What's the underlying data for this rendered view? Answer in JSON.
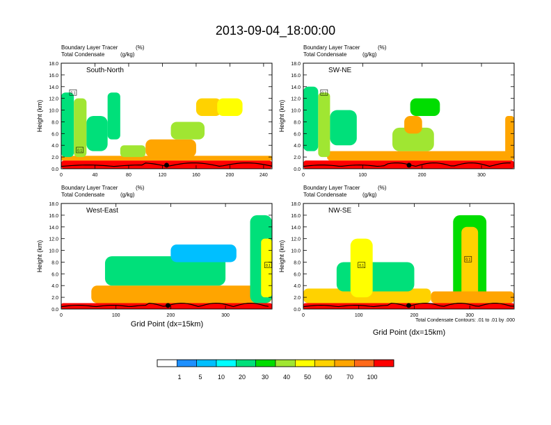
{
  "figure": {
    "title": "2013-09-04_18:00:00",
    "x_axis_title": "Grid Point (dx=15km)",
    "contour_note": "Total Condensate Contours: .01 to .01 by .000"
  },
  "chart_data": [
    {
      "type": "heatmap",
      "panel": "South-North",
      "subtitle_left": "Boundary Layer Tracer",
      "subtitle_right": "(%)",
      "subtitle2_left": "Total Condensate",
      "subtitle2_right": "(g/kg)",
      "ylabel": "Height (km)",
      "xlim": [
        0,
        250
      ],
      "ylim": [
        0,
        18
      ],
      "xticks": [
        0,
        40,
        80,
        120,
        160,
        200,
        240
      ],
      "yticks": [
        "0.0",
        "2.0",
        "4.0",
        "6.0",
        "8.0",
        "10.0",
        "12.0",
        "14.0",
        "16.0",
        "18.0"
      ],
      "marker_x": 125,
      "contour_labels": [
        {
          "text": "0.1",
          "x": 14,
          "y": 13
        },
        {
          "text": "0.1",
          "x": 22,
          "y": 3.2
        }
      ],
      "field": [
        {
          "x": [
            0,
            250
          ],
          "y": [
            0,
            1.4
          ],
          "level": 100
        },
        {
          "x": [
            0,
            250
          ],
          "y": [
            1.4,
            2.2
          ],
          "level": 70
        },
        {
          "x": [
            0,
            15
          ],
          "y": [
            2,
            13
          ],
          "level": 20
        },
        {
          "x": [
            15,
            30
          ],
          "y": [
            2,
            12
          ],
          "level": 40
        },
        {
          "x": [
            30,
            55
          ],
          "y": [
            3,
            9
          ],
          "level": 20
        },
        {
          "x": [
            55,
            70
          ],
          "y": [
            5,
            13
          ],
          "level": 20
        },
        {
          "x": [
            70,
            100
          ],
          "y": [
            2,
            4
          ],
          "level": 40
        },
        {
          "x": [
            100,
            160
          ],
          "y": [
            2,
            5
          ],
          "level": 70
        },
        {
          "x": [
            130,
            170
          ],
          "y": [
            5,
            8
          ],
          "level": 40
        },
        {
          "x": [
            160,
            190
          ],
          "y": [
            9,
            12
          ],
          "level": 60
        },
        {
          "x": [
            185,
            215
          ],
          "y": [
            9,
            12
          ],
          "level": 50
        }
      ]
    },
    {
      "type": "heatmap",
      "panel": "SW-NE",
      "subtitle_left": "Boundary Layer Tracer",
      "subtitle_right": "(%)",
      "subtitle2_left": "Total Condensate",
      "subtitle2_right": "(g/kg)",
      "ylabel": "Height (km)",
      "xlim": [
        0,
        355
      ],
      "ylim": [
        0,
        18
      ],
      "xticks": [
        0,
        100,
        200,
        300
      ],
      "yticks": [
        "0.0",
        "2.0",
        "4.0",
        "6.0",
        "8.0",
        "10.0",
        "12.0",
        "14.0",
        "16.0",
        "18.0"
      ],
      "marker_x": 178,
      "contour_labels": [
        {
          "text": "0.1",
          "x": 35,
          "y": 13
        }
      ],
      "field": [
        {
          "x": [
            0,
            355
          ],
          "y": [
            0,
            1.4
          ],
          "level": 100
        },
        {
          "x": [
            40,
            355
          ],
          "y": [
            1.4,
            3
          ],
          "level": 70
        },
        {
          "x": [
            0,
            25
          ],
          "y": [
            3,
            14
          ],
          "level": 20
        },
        {
          "x": [
            25,
            45
          ],
          "y": [
            2,
            13
          ],
          "level": 40
        },
        {
          "x": [
            45,
            90
          ],
          "y": [
            4,
            10
          ],
          "level": 20
        },
        {
          "x": [
            150,
            220
          ],
          "y": [
            3,
            7
          ],
          "level": 40
        },
        {
          "x": [
            170,
            200
          ],
          "y": [
            6,
            9
          ],
          "level": 70
        },
        {
          "x": [
            180,
            230
          ],
          "y": [
            9,
            12
          ],
          "level": 30
        },
        {
          "x": [
            340,
            355
          ],
          "y": [
            2,
            9
          ],
          "level": 70
        }
      ]
    },
    {
      "type": "heatmap",
      "panel": "West-East",
      "subtitle_left": "Boundary Layer Tracer",
      "subtitle_right": "(%)",
      "subtitle2_left": "Total Condensate",
      "subtitle2_right": "(g/kg)",
      "ylabel": "Height (km)",
      "xlim": [
        0,
        385
      ],
      "ylim": [
        0,
        18
      ],
      "xticks": [
        0,
        100,
        200,
        300
      ],
      "yticks": [
        "0.0",
        "2.0",
        "4.0",
        "6.0",
        "8.0",
        "10.0",
        "12.0",
        "14.0",
        "16.0",
        "18.0"
      ],
      "marker_x": 195,
      "contour_labels": [
        {
          "text": "0.1",
          "x": 378,
          "y": 7.5
        }
      ],
      "field": [
        {
          "x": [
            0,
            385
          ],
          "y": [
            0,
            1
          ],
          "level": 100
        },
        {
          "x": [
            55,
            385
          ],
          "y": [
            1,
            4
          ],
          "level": 70
        },
        {
          "x": [
            90,
            170
          ],
          "y": [
            4,
            7
          ],
          "level": 50
        },
        {
          "x": [
            80,
            300
          ],
          "y": [
            4,
            9
          ],
          "level": 20
        },
        {
          "x": [
            200,
            320
          ],
          "y": [
            8,
            11
          ],
          "level": 5
        },
        {
          "x": [
            345,
            385
          ],
          "y": [
            1,
            16
          ],
          "level": 20
        },
        {
          "x": [
            365,
            385
          ],
          "y": [
            2,
            12
          ],
          "level": 50
        }
      ]
    },
    {
      "type": "heatmap",
      "panel": "NW-SE",
      "subtitle_left": "Boundary Layer Tracer",
      "subtitle_right": "(%)",
      "subtitle2_left": "Total Condensate",
      "subtitle2_right": "(g/kg)",
      "ylabel": "Height (km)",
      "xlim": [
        0,
        380
      ],
      "ylim": [
        0,
        18
      ],
      "xticks": [
        0,
        100,
        200,
        300
      ],
      "yticks": [
        "0.0",
        "2.0",
        "4.0",
        "6.0",
        "8.0",
        "10.0",
        "12.0",
        "14.0",
        "16.0",
        "18.0"
      ],
      "marker_x": 190,
      "contour_labels": [
        {
          "text": "0.1",
          "x": 105,
          "y": 7.5
        },
        {
          "text": "0.1",
          "x": 297,
          "y": 8.5
        }
      ],
      "field": [
        {
          "x": [
            0,
            380
          ],
          "y": [
            0,
            1
          ],
          "level": 100
        },
        {
          "x": [
            0,
            230
          ],
          "y": [
            1,
            3.5
          ],
          "level": 60
        },
        {
          "x": [
            60,
            200
          ],
          "y": [
            3,
            8
          ],
          "level": 20
        },
        {
          "x": [
            85,
            125
          ],
          "y": [
            2,
            12
          ],
          "level": 50
        },
        {
          "x": [
            270,
            330
          ],
          "y": [
            1,
            16
          ],
          "level": 30
        },
        {
          "x": [
            285,
            315
          ],
          "y": [
            2,
            14
          ],
          "level": 60
        },
        {
          "x": [
            230,
            380
          ],
          "y": [
            1,
            3
          ],
          "level": 70
        }
      ]
    }
  ],
  "colorbar": {
    "labels": [
      "1",
      "5",
      "10",
      "20",
      "30",
      "40",
      "50",
      "60",
      "70",
      "100"
    ],
    "colors": [
      "#ffffff",
      "#1e90ff",
      "#00bfff",
      "#00ffff",
      "#00e07a",
      "#00dd00",
      "#a0e632",
      "#ffff00",
      "#ffd200",
      "#ffa500",
      "#ff6a1a",
      "#ff0000"
    ]
  }
}
